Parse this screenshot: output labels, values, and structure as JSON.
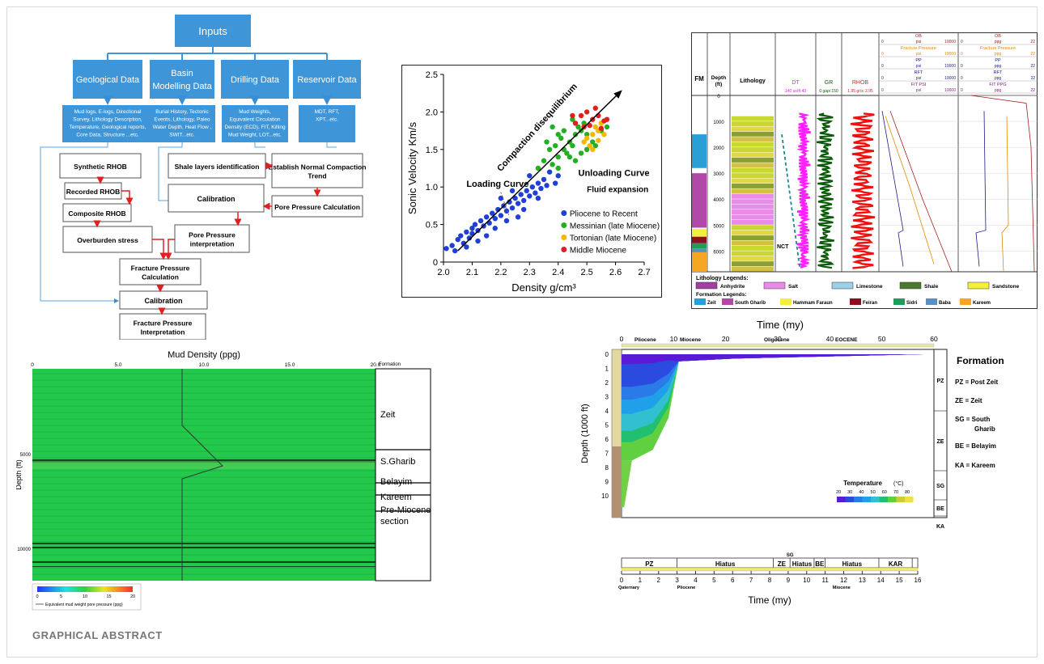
{
  "footer": {
    "label": "GRAPHICAL ABSTRACT"
  },
  "flowchart": {
    "inputs": "Inputs",
    "categories": [
      {
        "title_line1": "Geological Data",
        "title_line2": "",
        "detail": [
          "Mud logs, E-logs, Directional",
          "Survey, Lithology Description,",
          "Temperature, Geological reports,",
          "Core Data, Structure ...etc."
        ]
      },
      {
        "title_line1": "Basin",
        "title_line2": "Modelling Data",
        "detail": [
          "Burial History, Tectonic",
          "Events, Lithology, Paleo",
          "Water Depth, Heat Flow ,",
          "SWIT...etc."
        ]
      },
      {
        "title_line1": "Drilling Data",
        "title_line2": "",
        "detail": [
          "Mud Weights,",
          "Equivalent Circulation",
          "Density (ECD), FIT, Killing",
          "Mud Weight, LOT...etc."
        ]
      },
      {
        "title_line1": "Reservoir Data",
        "title_line2": "",
        "detail": [
          "MDT, RFT,",
          "XPT...etc."
        ]
      }
    ],
    "steps": {
      "synthetic_rhob": "Synthetic RHOB",
      "recorded_rhob": "Recorded RHOB",
      "composite_rhob": "Composite RHOB",
      "overburden": "Overburden stress",
      "shale_identification": "Shale layers identification",
      "normal_compaction": [
        "Establish Normal Compaction",
        "Trend"
      ],
      "calibration_1": "Calibration",
      "pore_pressure_calc": "Pore Pressure Calculation",
      "pore_pressure_interp": [
        "Pore Pressure",
        "interpretation"
      ],
      "fracture_calc": [
        "Fracture Pressure",
        "Calculation"
      ],
      "calibration_2": "Calibration",
      "fracture_interp": [
        "Fracture Pressure",
        "Interpretation"
      ]
    }
  },
  "scatter": {
    "chart_data": {
      "type": "scatter",
      "xlabel": "Density g/cm³",
      "ylabel": "Sonic Velocity Km/s",
      "xlim": [
        2.0,
        2.7
      ],
      "ylim": [
        0,
        2.5
      ],
      "x_ticks": [
        "2.0",
        "2.1",
        "2.2",
        "2.3",
        "2.4",
        "2.5",
        "2.6",
        "2.7"
      ],
      "y_ticks": [
        "0",
        "0.5",
        "1.0",
        "1.5",
        "2.0",
        "2.5"
      ],
      "annotations": {
        "compaction": "Compaction disequilibrium",
        "loading": "Loading Curve",
        "unloading": "Unloading Curve",
        "fluid": "Fluid expansion"
      },
      "series": [
        {
          "name": "Pliocene to Recent",
          "color": "#1f3fd6",
          "points": [
            [
              2.01,
              0.18
            ],
            [
              2.03,
              0.22
            ],
            [
              2.04,
              0.15
            ],
            [
              2.05,
              0.3
            ],
            [
              2.06,
              0.35
            ],
            [
              2.07,
              0.25
            ],
            [
              2.08,
              0.4
            ],
            [
              2.09,
              0.32
            ],
            [
              2.1,
              0.45
            ],
            [
              2.1,
              0.38
            ],
            [
              2.11,
              0.5
            ],
            [
              2.12,
              0.42
            ],
            [
              2.13,
              0.55
            ],
            [
              2.14,
              0.48
            ],
            [
              2.15,
              0.6
            ],
            [
              2.16,
              0.52
            ],
            [
              2.17,
              0.65
            ],
            [
              2.18,
              0.58
            ],
            [
              2.19,
              0.7
            ],
            [
              2.2,
              0.62
            ],
            [
              2.21,
              0.75
            ],
            [
              2.22,
              0.68
            ],
            [
              2.23,
              0.8
            ],
            [
              2.24,
              0.72
            ],
            [
              2.25,
              0.85
            ],
            [
              2.26,
              0.78
            ],
            [
              2.27,
              0.9
            ],
            [
              2.28,
              0.82
            ],
            [
              2.29,
              0.95
            ],
            [
              2.3,
              0.88
            ],
            [
              2.31,
              1.0
            ],
            [
              2.32,
              0.92
            ],
            [
              2.33,
              1.05
            ],
            [
              2.34,
              0.98
            ],
            [
              2.35,
              1.1
            ],
            [
              2.36,
              1.02
            ],
            [
              2.3,
              1.15
            ],
            [
              2.28,
              0.7
            ],
            [
              2.24,
              0.95
            ],
            [
              2.18,
              0.45
            ],
            [
              2.08,
              0.2
            ],
            [
              2.12,
              0.28
            ],
            [
              2.22,
              0.55
            ],
            [
              2.26,
              0.6
            ],
            [
              2.33,
              0.85
            ],
            [
              2.37,
              1.2
            ],
            [
              2.4,
              1.15
            ],
            [
              2.39,
              1.05
            ],
            [
              2.15,
              0.35
            ],
            [
              2.2,
              0.85
            ]
          ]
        },
        {
          "name": "Messinian (late Miocene)",
          "color": "#22b022",
          "points": [
            [
              2.38,
              1.3
            ],
            [
              2.4,
              1.4
            ],
            [
              2.42,
              1.5
            ],
            [
              2.44,
              1.6
            ],
            [
              2.46,
              1.7
            ],
            [
              2.48,
              1.75
            ],
            [
              2.35,
              1.35
            ],
            [
              2.37,
              1.5
            ],
            [
              2.39,
              1.55
            ],
            [
              2.41,
              1.65
            ],
            [
              2.43,
              1.45
            ],
            [
              2.45,
              1.55
            ],
            [
              2.47,
              1.8
            ],
            [
              2.49,
              1.85
            ],
            [
              2.36,
              1.6
            ],
            [
              2.4,
              1.7
            ],
            [
              2.42,
              1.75
            ],
            [
              2.44,
              1.4
            ],
            [
              2.46,
              1.35
            ],
            [
              2.5,
              1.5
            ],
            [
              2.52,
              1.6
            ],
            [
              2.33,
              1.25
            ],
            [
              2.38,
              1.8
            ],
            [
              2.4,
              1.25
            ],
            [
              2.45,
              1.9
            ],
            [
              2.48,
              1.45
            ],
            [
              2.5,
              1.7
            ],
            [
              2.53,
              1.55
            ],
            [
              2.55,
              1.75
            ],
            [
              2.57,
              1.8
            ]
          ]
        },
        {
          "name": "Tortonian (late Miocene)",
          "color": "#f5b800",
          "points": [
            [
              2.5,
              1.65
            ],
            [
              2.52,
              1.7
            ],
            [
              2.54,
              1.75
            ],
            [
              2.51,
              1.55
            ],
            [
              2.53,
              1.8
            ],
            [
              2.55,
              1.85
            ],
            [
              2.49,
              1.6
            ],
            [
              2.52,
              1.5
            ],
            [
              2.56,
              1.7
            ],
            [
              2.54,
              1.62
            ]
          ]
        },
        {
          "name": "Middle Miocene",
          "color": "#e02020",
          "points": [
            [
              2.48,
              1.95
            ],
            [
              2.5,
              2.0
            ],
            [
              2.52,
              1.9
            ],
            [
              2.54,
              1.95
            ],
            [
              2.56,
              1.88
            ],
            [
              2.46,
              1.85
            ],
            [
              2.51,
              1.82
            ],
            [
              2.53,
              2.05
            ],
            [
              2.55,
              1.78
            ],
            [
              2.57,
              1.9
            ],
            [
              2.49,
              1.8
            ],
            [
              2.45,
              1.95
            ]
          ]
        }
      ]
    }
  },
  "well_log": {
    "header": {
      "fm": "FM",
      "depth": "Depth (ft)",
      "lithology": "Lithology",
      "dt": "DT",
      "dt_scale": [
        "140",
        "us/ft",
        "40"
      ],
      "gr": "GR",
      "gr_scale": [
        "0",
        "gapi",
        "150"
      ],
      "rhob": "RHOB",
      "rhob_scale": [
        "1.95",
        "g/cc",
        "2.95"
      ]
    },
    "psi_header": [
      {
        "left": "0",
        "mid": "OB",
        "unit": "psi",
        "right": "10000"
      },
      {
        "left": "0",
        "mid": "Fracture Pressure",
        "unit": "psi",
        "right": "10000"
      },
      {
        "left": "0",
        "mid": "PP",
        "unit": "psi",
        "right": "10000"
      },
      {
        "left": "0",
        "mid": "RFT",
        "unit": "psi",
        "right": "10000"
      },
      {
        "left": "0",
        "mid": "FIT PSI",
        "unit": "psi",
        "right": "10000"
      }
    ],
    "ppg_header": [
      {
        "left": "0",
        "mid": "OB",
        "unit": "ppg",
        "right": "22"
      },
      {
        "left": "0",
        "mid": "Fracture Pressure",
        "unit": "ppg",
        "right": "22"
      },
      {
        "left": "0",
        "mid": "PP",
        "unit": "ppg",
        "right": "22"
      },
      {
        "left": "0",
        "mid": "RFT",
        "unit": "ppg",
        "right": "22"
      },
      {
        "left": "0",
        "mid": "FIT PPG",
        "unit": "ppg",
        "right": "22"
      }
    ],
    "depth_ticks": [
      "0",
      "1000",
      "2000",
      "3000",
      "4000",
      "5000",
      "6000"
    ],
    "nct_label": "NCT",
    "lithology_legend_title": "Lithology Legends:",
    "lithology_legend": [
      "Anhydrite",
      "Salt",
      "Limestone",
      "Shale",
      "Sandstone"
    ],
    "formation_legend_title": "Formation Legends:",
    "formation_legend": [
      {
        "name": "Zeit",
        "color": "#2a9fd6"
      },
      {
        "name": "South Gharib",
        "color": "#b048a8"
      },
      {
        "name": "Hammam Faraun",
        "color": "#f4ef3a"
      },
      {
        "name": "Feiran",
        "color": "#8a1020"
      },
      {
        "name": "Sidri",
        "color": "#1e9e5a"
      },
      {
        "name": "Baba",
        "color": "#5b8fc0"
      },
      {
        "name": "Kareem",
        "color": "#f5a623"
      }
    ]
  },
  "mud_density": {
    "title": "Mud Density (ppg)",
    "x_ticks": [
      "0",
      "5.0",
      "10.0",
      "15.0",
      "20.0"
    ],
    "formation_header": "Formation",
    "y_label": "Depth (ft)",
    "y_ticks": [
      "5000",
      "10000"
    ],
    "formations": [
      "Zeit",
      "S.Gharib",
      "Belayim",
      "Kareem",
      "Pre-Miocene section"
    ],
    "colorbar_ticks": [
      "0",
      "5",
      "10",
      "15",
      "20"
    ],
    "colorbar_caption": "Equivalent mud weight pore pressure (ppg)"
  },
  "burial": {
    "top_axis_title": "Time (my)",
    "top_ticks": [
      "0",
      "10",
      "20",
      "30",
      "40",
      "50",
      "60"
    ],
    "epochs": [
      "Pliocene",
      "Miocene",
      "Oligocene",
      "EOCENE"
    ],
    "y_label": "Depth (1000 ft)",
    "y_ticks": [
      "0",
      "1",
      "2",
      "3",
      "4",
      "5",
      "6",
      "7",
      "8",
      "9",
      "10"
    ],
    "right_labels": [
      "PZ",
      "ZE",
      "SG",
      "BE",
      "KA"
    ],
    "temperature_label": "Temperature",
    "temperature_unit": "(°C)",
    "temperature_ticks": [
      "20",
      "30",
      "40",
      "50",
      "60",
      "70",
      "80"
    ],
    "formation_title": "Formation",
    "formation_legend": [
      "PZ = Post Zeit",
      "ZE = Zeit",
      "SG = South Gharib",
      "BE = Belayim",
      "KA = Kareem"
    ],
    "timeline": {
      "segments": [
        "PZ",
        "Hiatus",
        "ZE",
        "Hiatus",
        "BE",
        "Hiatus",
        "KAR"
      ],
      "sg_label": "SG",
      "ticks": [
        "0",
        "1",
        "2",
        "3",
        "4",
        "5",
        "6",
        "7",
        "8",
        "9",
        "10",
        "11",
        "12",
        "13",
        "14",
        "15",
        "16"
      ],
      "periods": [
        "Qaternary",
        "Pliocene",
        "Miocene"
      ],
      "axis_title": "Time (my)"
    }
  }
}
